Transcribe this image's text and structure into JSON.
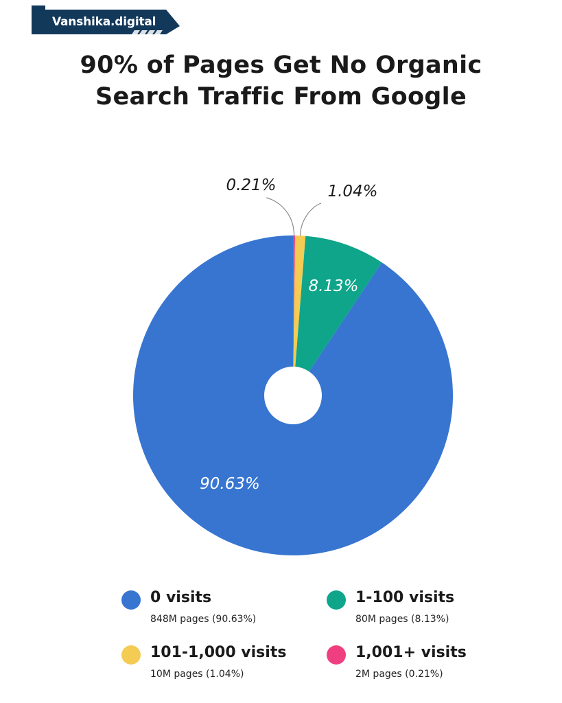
{
  "brand": {
    "name": "Vanshika.digital",
    "color": "#12385a"
  },
  "title_lines": [
    "90% of Pages Get No Organic",
    "Search Traffic From Google"
  ],
  "chart_data": {
    "type": "pie",
    "title": "90% of Pages Get No Organic Search Traffic From Google",
    "donut_hole": true,
    "slices": [
      {
        "label": "0 visits",
        "value": 90.63,
        "display": "90.63%",
        "detail": "848M pages (90.63%)",
        "color": "#3775d1"
      },
      {
        "label": "1-100 visits",
        "value": 8.13,
        "display": "8.13%",
        "detail": "80M pages (8.13%)",
        "color": "#0ea58a"
      },
      {
        "label": "101-1,000 visits",
        "value": 1.04,
        "display": "1.04%",
        "detail": "10M pages (1.04%)",
        "color": "#f4cb53"
      },
      {
        "label": "1,001+ visits",
        "value": 0.21,
        "display": "0.21%",
        "detail": "2M pages (0.21%)",
        "color": "#f03f80"
      }
    ],
    "legend_position": "bottom"
  }
}
